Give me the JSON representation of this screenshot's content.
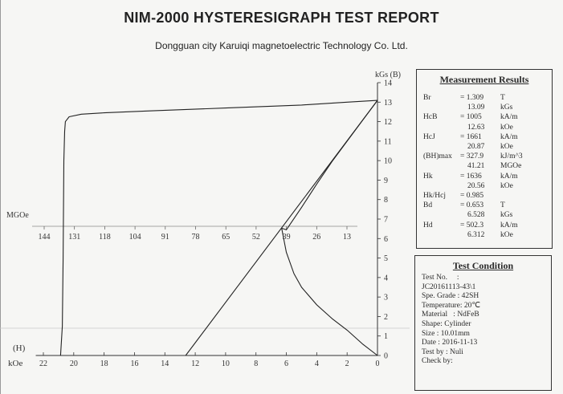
{
  "report": {
    "title": "NIM-2000 HYSTERESIGRAPH TEST REPORT",
    "company": "Dongguan city Karuiqi magnetoelectric Technology Co. Ltd."
  },
  "measurement": {
    "heading": "Measurement Results",
    "rows": [
      {
        "label": "Br",
        "eq": "= 1.309",
        "unit": "T"
      },
      {
        "label": "",
        "eq": "13.09",
        "unit": "kGs"
      },
      {
        "label": "HcB",
        "eq": "= 1005",
        "unit": "kA/m"
      },
      {
        "label": "",
        "eq": "12.63",
        "unit": "kOe"
      },
      {
        "label": "HcJ",
        "eq": "= 1661",
        "unit": "kA/m"
      },
      {
        "label": "",
        "eq": "20.87",
        "unit": "kOe"
      },
      {
        "label": "(BH)max",
        "eq": "= 327.9",
        "unit": "kJ/m^3"
      },
      {
        "label": "",
        "eq": "41.21",
        "unit": "MGOe"
      },
      {
        "label": "Hk",
        "eq": "= 1636",
        "unit": "kA/m"
      },
      {
        "label": "",
        "eq": "20.56",
        "unit": "kOe"
      },
      {
        "label": "Hk/Hcj",
        "eq": "= 0.985",
        "unit": ""
      },
      {
        "label": "Bd",
        "eq": "= 0.653",
        "unit": "T"
      },
      {
        "label": "",
        "eq": "6.528",
        "unit": "kGs"
      },
      {
        "label": "Hd",
        "eq": "= 502.3",
        "unit": "kA/m"
      },
      {
        "label": "",
        "eq": "6.312",
        "unit": "kOe"
      }
    ]
  },
  "test_condition": {
    "heading": "Test Condition",
    "lines": [
      "Test No.     :",
      "JC20161113-43\\1",
      "Spe. Grade : 42SH",
      "Temperature: 20℃",
      "Material   : NdFeB",
      "Shape: Cylinder",
      "Size : 10.01mm",
      "Date : 2016-11-13",
      "Test by : Nuli",
      "Check by:"
    ]
  },
  "chart_data": {
    "type": "line",
    "xlabel": "kOe",
    "xlabel_extra": "(H)",
    "ylabel": "kGs (B)",
    "bh_label": "MGOe",
    "x_ticks": [
      22,
      20,
      18,
      16,
      14,
      12,
      10,
      8,
      6,
      4,
      2,
      0
    ],
    "y_ticks": [
      0,
      1,
      2,
      3,
      4,
      5,
      6,
      7,
      8,
      9,
      10,
      11,
      12,
      13,
      14
    ],
    "bh_ticks": [
      144,
      131,
      118,
      104,
      91,
      78,
      65,
      52,
      39,
      26,
      13
    ],
    "xlim": [
      -22.5,
      0
    ],
    "ylim": [
      0,
      14
    ],
    "series": [
      {
        "key": "J",
        "points": [
          [
            0,
            13.09
          ],
          [
            -2,
            13.0
          ],
          [
            -5,
            12.85
          ],
          [
            -10,
            12.7
          ],
          [
            -15,
            12.55
          ],
          [
            -18,
            12.45
          ],
          [
            -19.5,
            12.38
          ],
          [
            -20.3,
            12.25
          ],
          [
            -20.55,
            12.0
          ],
          [
            -20.6,
            11.5
          ],
          [
            -20.65,
            10.0
          ],
          [
            -20.7,
            5.0
          ],
          [
            -20.75,
            1.5
          ],
          [
            -20.87,
            0
          ]
        ]
      },
      {
        "key": "B",
        "points": [
          [
            0,
            13.09
          ],
          [
            -12.63,
            0
          ]
        ]
      },
      {
        "key": "BH",
        "points": [
          [
            0,
            13.09
          ],
          [
            -1,
            12.05
          ],
          [
            -2,
            11.0
          ],
          [
            -3,
            9.95
          ],
          [
            -4,
            8.8
          ],
          [
            -5,
            7.6
          ],
          [
            -6,
            6.45
          ],
          [
            -6.31,
            6.53
          ],
          [
            -6,
            5.3
          ],
          [
            -5.5,
            4.2
          ],
          [
            -5,
            3.5
          ],
          [
            -4,
            2.6
          ],
          [
            -3,
            1.9
          ],
          [
            -2,
            1.3
          ],
          [
            -1,
            0.6
          ],
          [
            0,
            0
          ]
        ]
      }
    ]
  }
}
